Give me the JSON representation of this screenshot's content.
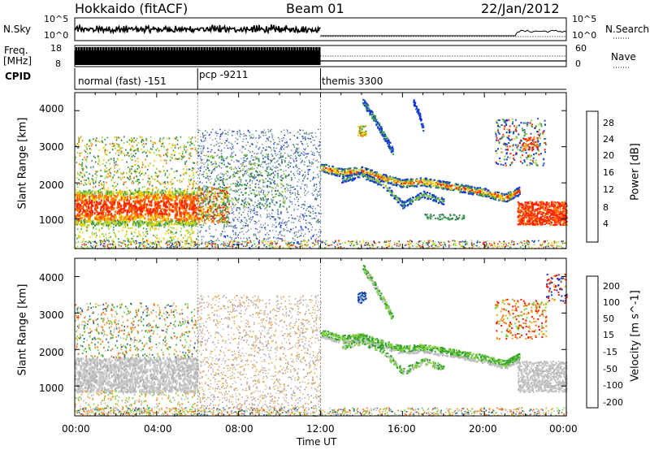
{
  "header": {
    "title": "Hokkaido (fitACF)",
    "beam": "Beam 01",
    "date": "22/Jan/2012"
  },
  "top_panel": {
    "nsky_label": "N.Sky",
    "nsearch_label": "N.Search",
    "left_ticks": [
      "10^5",
      "10^0"
    ],
    "right_ticks": [
      "10^5",
      "10^0"
    ]
  },
  "freq_panel": {
    "freq_label": "Freq.",
    "freq_unit": "[MHz]",
    "left_ticks": [
      "18",
      "8"
    ],
    "right_ticks": [
      "60",
      "0"
    ],
    "nave_label": "Nave"
  },
  "cpid_panel": {
    "label": "CPID",
    "modes": [
      {
        "name": "normal (fast) -151",
        "start_hour": 0,
        "end_hour": 6
      },
      {
        "name": "pcp -9211",
        "start_hour": 6,
        "end_hour": 12
      },
      {
        "name": "themis 3300",
        "start_hour": 12,
        "end_hour": 24
      }
    ]
  },
  "power_panel": {
    "ylabel": "Slant Range [km]",
    "yticks": [
      "4000",
      "3000",
      "2000",
      "1000"
    ],
    "colorbar_label": "Power [dB]",
    "colorbar_ticks": [
      "28",
      "24",
      "20",
      "16",
      "12",
      "8",
      "4"
    ]
  },
  "velocity_panel": {
    "ylabel": "Slant Range [km]",
    "yticks": [
      "4000",
      "3000",
      "2000",
      "1000"
    ],
    "colorbar_label": "Velocity [m s^-1]",
    "colorbar_ticks": [
      "200",
      "100",
      "50",
      "15",
      "-15",
      "-50",
      "-100",
      "-200"
    ]
  },
  "xaxis": {
    "label": "Time UT",
    "ticks": [
      "00:00",
      "04:00",
      "08:00",
      "12:00",
      "16:00",
      "20:00",
      "00:00"
    ]
  },
  "colors": {
    "power_scale": [
      "#1030e0",
      "#2050c0",
      "#3a7a5a",
      "#40a050",
      "#a0d040",
      "#f0d000",
      "#ff8000",
      "#ff2000"
    ],
    "velocity_scale": [
      "#1030c0",
      "#2060a0",
      "#30a030",
      "#80d040",
      "#c0c0c0",
      "#f0a020",
      "#ff6000",
      "#ff1000"
    ]
  },
  "chart_data": [
    {
      "type": "heatmap",
      "title": "Power [dB]",
      "xlabel": "Time UT",
      "ylabel": "Slant Range [km]",
      "xlim": [
        0,
        24
      ],
      "ylim": [
        180,
        4500
      ],
      "clim": [
        0,
        30
      ],
      "features": [
        {
          "start_hour": 0,
          "end_hour": 6,
          "range_km": [
            900,
            1800
          ],
          "power_db": 24
        },
        {
          "start_hour": 6,
          "end_hour": 12,
          "range_km": [
            300,
            3500
          ],
          "power_db": 10
        },
        {
          "start_hour": 12,
          "end_hour": 21,
          "range_km": [
            1700,
            2700
          ],
          "power_db": 14
        },
        {
          "start_hour": 21.7,
          "end_hour": 24,
          "range_km": [
            900,
            1500
          ],
          "power_db": 28
        }
      ]
    },
    {
      "type": "heatmap",
      "title": "Velocity [m s^-1]",
      "xlabel": "Time UT",
      "ylabel": "Slant Range [km]",
      "xlim": [
        0,
        24
      ],
      "ylim": [
        180,
        4500
      ],
      "clim": [
        -250,
        250
      ],
      "features": [
        {
          "start_hour": 0,
          "end_hour": 6,
          "range_km": [
            900,
            1800
          ],
          "velocity": 0
        },
        {
          "start_hour": 6,
          "end_hour": 12,
          "range_km": [
            300,
            3500
          ],
          "velocity": -30
        },
        {
          "start_hour": 12,
          "end_hour": 21,
          "range_km": [
            1700,
            2700
          ],
          "velocity": 40
        },
        {
          "start_hour": 21.7,
          "end_hour": 24,
          "range_km": [
            900,
            1500
          ],
          "velocity": 0
        }
      ]
    }
  ]
}
